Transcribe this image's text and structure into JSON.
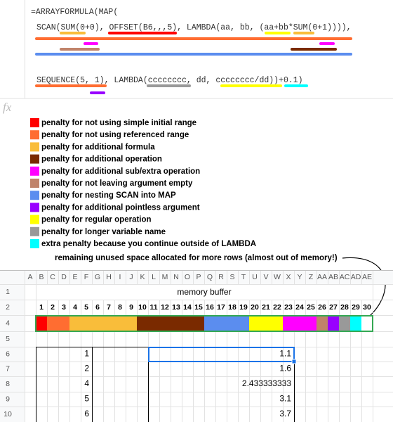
{
  "formula": {
    "lines": [
      "=ARRAYFORMULA(MAP(",
      "SCAN(SUM(0+0), OFFSET(B6,,,5), LAMBDA(aa, bb, (aa+bb*SUM(0+1)))),",
      "SEQUENCE(5, 1), LAMBDA(cccccccc, dd, cccccccc/dd))+0.1)"
    ]
  },
  "fx_label": "fx",
  "legend": [
    {
      "color": "#ff0000",
      "label": "penalty for not using simple initial range"
    },
    {
      "color": "#ff6d31",
      "label": "penalty for not using referenced range"
    },
    {
      "color": "#f9bd3a",
      "label": "penalty for additional formula"
    },
    {
      "color": "#7a2a00",
      "label": "penalty for additional operation"
    },
    {
      "color": "#ff00ff",
      "label": "penalty for additional sub/extra operation"
    },
    {
      "color": "#c0836a",
      "label": "penalty for not leaving argument empty"
    },
    {
      "color": "#5b8def",
      "label": "penalty for nesting SCAN into MAP"
    },
    {
      "color": "#9900ff",
      "label": "penalty for additional pointless argument"
    },
    {
      "color": "#ffff00",
      "label": "penalty for regular operation"
    },
    {
      "color": "#999999",
      "label": "penalty for longer variable name"
    },
    {
      "color": "#00ffff",
      "label": "extra penalty because you continue outside of LAMBDA"
    }
  ],
  "annotation": "remaining unused space allocated for more rows (almost out of memory!)",
  "sheet": {
    "columns": [
      "A",
      "B",
      "C",
      "D",
      "E",
      "F",
      "G",
      "H",
      "I",
      "J",
      "K",
      "L",
      "M",
      "N",
      "O",
      "P",
      "Q",
      "R",
      "S",
      "T",
      "U",
      "V",
      "W",
      "X",
      "Y",
      "Z",
      "AA",
      "AB",
      "AC",
      "AD",
      "AE"
    ],
    "row_numbers": [
      1,
      2,
      4,
      5,
      6,
      7,
      8,
      9,
      10
    ],
    "row1_title": "memory buffer",
    "row2": [
      1,
      2,
      3,
      4,
      5,
      6,
      7,
      8,
      9,
      10,
      11,
      12,
      13,
      14,
      15,
      16,
      17,
      18,
      19,
      20,
      21,
      22,
      23,
      24,
      25,
      26,
      27,
      28,
      29,
      30
    ],
    "row4_colors": [
      "#ff0000",
      "#ff6d31",
      "#ff6d31",
      "#f9bd3a",
      "#f9bd3a",
      "#f9bd3a",
      "#f9bd3a",
      "#f9bd3a",
      "#f9bd3a",
      "#7a2a00",
      "#7a2a00",
      "#7a2a00",
      "#7a2a00",
      "#7a2a00",
      "#7a2a00",
      "#5b8def",
      "#5b8def",
      "#5b8def",
      "#5b8def",
      "#ffff00",
      "#ffff00",
      "#ffff00",
      "#ff00ff",
      "#ff00ff",
      "#ff00ff",
      "#c0836a",
      "#9900ff",
      "#999999",
      "#00ffff",
      "#ffffff"
    ],
    "table": [
      [
        1,
        1.1
      ],
      [
        2,
        1.6
      ],
      [
        4,
        2.433333333
      ],
      [
        5,
        3.1
      ],
      [
        6,
        3.7
      ]
    ]
  }
}
